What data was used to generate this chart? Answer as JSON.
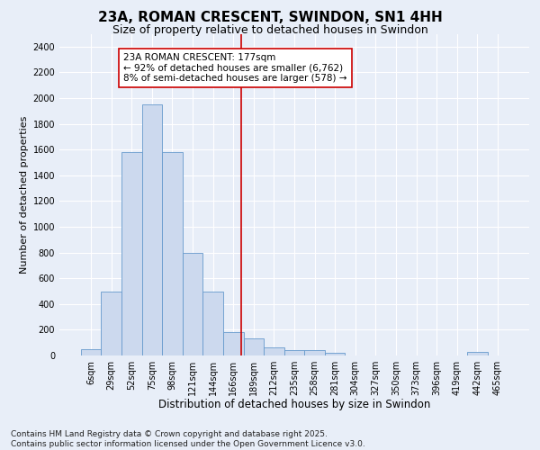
{
  "title": "23A, ROMAN CRESCENT, SWINDON, SN1 4HH",
  "subtitle": "Size of property relative to detached houses in Swindon",
  "xlabel": "Distribution of detached houses by size in Swindon",
  "ylabel": "Number of detached properties",
  "footnote": "Contains HM Land Registry data © Crown copyright and database right 2025.\nContains public sector information licensed under the Open Government Licence v3.0.",
  "bin_labels": [
    "6sqm",
    "29sqm",
    "52sqm",
    "75sqm",
    "98sqm",
    "121sqm",
    "144sqm",
    "166sqm",
    "189sqm",
    "212sqm",
    "235sqm",
    "258sqm",
    "281sqm",
    "304sqm",
    "327sqm",
    "350sqm",
    "373sqm",
    "396sqm",
    "419sqm",
    "442sqm",
    "465sqm"
  ],
  "bar_values": [
    50,
    500,
    1580,
    1950,
    1580,
    800,
    500,
    180,
    130,
    60,
    40,
    40,
    20,
    0,
    0,
    0,
    0,
    0,
    0,
    25,
    0
  ],
  "bar_color": "#ccd9ee",
  "bar_edge_color": "#6699cc",
  "vline_x_index": 7.4,
  "vline_color": "#cc0000",
  "annotation_text": "23A ROMAN CRESCENT: 177sqm\n← 92% of detached houses are smaller (6,762)\n8% of semi-detached houses are larger (578) →",
  "annotation_box_facecolor": "#ffffff",
  "annotation_box_edgecolor": "#cc0000",
  "ylim": [
    0,
    2500
  ],
  "yticks": [
    0,
    200,
    400,
    600,
    800,
    1000,
    1200,
    1400,
    1600,
    1800,
    2000,
    2200,
    2400
  ],
  "bg_color": "#e8eef8",
  "plot_bg_color": "#e8eef8",
  "grid_color": "#ffffff",
  "title_fontsize": 11,
  "subtitle_fontsize": 9,
  "xlabel_fontsize": 8.5,
  "ylabel_fontsize": 8,
  "tick_fontsize": 7,
  "footnote_fontsize": 6.5,
  "annotation_fontsize": 7.5
}
